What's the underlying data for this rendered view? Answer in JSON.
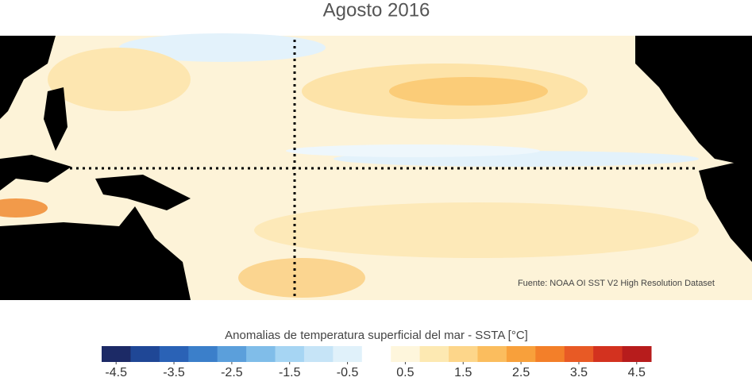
{
  "title": "Agosto 2016",
  "map": {
    "source": "Fuente: NOAA OI SST V2 High Resolution Dataset"
  },
  "colorbar": {
    "label": "Anomalias de temperatura superficial del mar - SSTA  [°C]",
    "limits": [
      -4.75,
      4.75
    ],
    "ticks": [
      -4.5,
      -3.5,
      -2.5,
      -1.5,
      -0.5,
      0.5,
      1.5,
      2.5,
      3.5,
      4.5
    ],
    "colors": [
      "#1c2a66",
      "#1f4796",
      "#2a62b6",
      "#3b7fca",
      "#5b9fdb",
      "#80bde9",
      "#a6d5f3",
      "#c6e4f7",
      "#e0f1fa",
      "#ffffff",
      "#fef6dc",
      "#fde9b2",
      "#fdd68a",
      "#fbbd5e",
      "#f8a03b",
      "#f37f29",
      "#e85a25",
      "#d3321f",
      "#b71c1c"
    ]
  }
}
